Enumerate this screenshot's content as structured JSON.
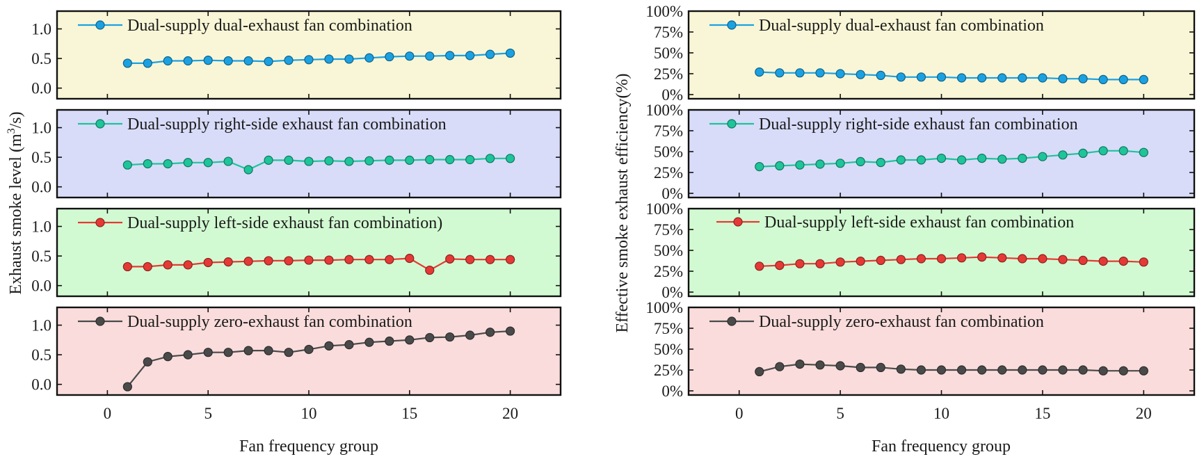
{
  "chart_data": [
    {
      "type": "line",
      "ylabel_prefix": "Exhaust smoke level (m",
      "ylabel_superscript": "3",
      "ylabel_suffix": "/s)",
      "xlabel": "Fan frequency group",
      "x_ticks": [
        "0",
        "5",
        "10",
        "15",
        "20"
      ],
      "x_tick_values": [
        0,
        5,
        10,
        15,
        20
      ],
      "xlim": [
        -2.5,
        22.5
      ],
      "y_ticks": [
        "0.0",
        "0.5",
        "1.0"
      ],
      "y_tick_values": [
        0,
        0.5,
        1.0
      ],
      "panels": [
        {
          "name": "Dual-supply dual-exhaust fan combination",
          "color": "#1ba1e2",
          "bg_color": "#f8f6d6",
          "ylim": [
            -0.18,
            1.3
          ],
          "x": [
            1,
            2,
            3,
            4,
            5,
            6,
            7,
            8,
            9,
            10,
            11,
            12,
            13,
            14,
            15,
            16,
            17,
            18,
            19,
            20
          ],
          "values": [
            0.42,
            0.42,
            0.46,
            0.46,
            0.47,
            0.46,
            0.46,
            0.45,
            0.47,
            0.48,
            0.49,
            0.49,
            0.51,
            0.53,
            0.54,
            0.54,
            0.55,
            0.55,
            0.57,
            0.59
          ]
        },
        {
          "name": "Dual-supply right-side exhaust fan combination",
          "color": "#1ec49a",
          "bg_color": "#d8dcf9",
          "ylim": [
            -0.18,
            1.3
          ],
          "x": [
            1,
            2,
            3,
            4,
            5,
            6,
            7,
            8,
            9,
            10,
            11,
            12,
            13,
            14,
            15,
            16,
            17,
            18,
            19,
            20
          ],
          "values": [
            0.37,
            0.39,
            0.39,
            0.41,
            0.41,
            0.43,
            0.29,
            0.45,
            0.45,
            0.43,
            0.44,
            0.43,
            0.44,
            0.45,
            0.45,
            0.46,
            0.46,
            0.46,
            0.48,
            0.48
          ]
        },
        {
          "name": "Dual-supply left-side exhaust fan combination)",
          "color": "#e53935",
          "bg_color": "#d2fad2",
          "ylim": [
            -0.18,
            1.3
          ],
          "x": [
            1,
            2,
            3,
            4,
            5,
            6,
            7,
            8,
            9,
            10,
            11,
            12,
            13,
            14,
            15,
            16,
            17,
            18,
            19,
            20
          ],
          "values": [
            0.32,
            0.32,
            0.35,
            0.35,
            0.39,
            0.4,
            0.41,
            0.42,
            0.42,
            0.43,
            0.43,
            0.44,
            0.44,
            0.44,
            0.46,
            0.26,
            0.45,
            0.44,
            0.44,
            0.44
          ]
        },
        {
          "name": "Dual-supply zero-exhaust fan combination",
          "color": "#4a4a4a",
          "bg_color": "#f9dcdb",
          "ylim": [
            -0.18,
            1.3
          ],
          "x": [
            1,
            2,
            3,
            4,
            5,
            6,
            7,
            8,
            9,
            10,
            11,
            12,
            13,
            14,
            15,
            16,
            17,
            18,
            19,
            20
          ],
          "values": [
            -0.04,
            0.38,
            0.47,
            0.5,
            0.54,
            0.54,
            0.57,
            0.57,
            0.54,
            0.59,
            0.65,
            0.67,
            0.71,
            0.73,
            0.75,
            0.79,
            0.8,
            0.83,
            0.88,
            0.9
          ]
        }
      ]
    },
    {
      "type": "line",
      "ylabel": "Effective smoke exhaust efficiency(%)",
      "xlabel": "Fan frequency group",
      "x_ticks": [
        "0",
        "5",
        "10",
        "15",
        "20"
      ],
      "x_tick_values": [
        0,
        5,
        10,
        15,
        20
      ],
      "xlim": [
        -2.5,
        22.5
      ],
      "y_ticks": [
        "0%",
        "25%",
        "50%",
        "75%",
        "100%"
      ],
      "y_tick_values": [
        0,
        25,
        50,
        75,
        100
      ],
      "panels": [
        {
          "name": "Dual-supply dual-exhaust fan combination",
          "color": "#1ba1e2",
          "bg_color": "#f8f6d6",
          "ylim": [
            -5,
            100
          ],
          "x": [
            1,
            2,
            3,
            4,
            5,
            6,
            7,
            8,
            9,
            10,
            11,
            12,
            13,
            14,
            15,
            16,
            17,
            18,
            19,
            20
          ],
          "values": [
            27,
            26,
            26,
            26,
            25,
            24,
            23,
            21,
            21,
            21,
            20,
            20,
            20,
            20,
            20,
            19,
            19,
            18,
            18,
            18
          ]
        },
        {
          "name": "Dual-supply right-side exhaust fan combination",
          "color": "#1ec49a",
          "bg_color": "#d8dcf9",
          "ylim": [
            -5,
            100
          ],
          "x": [
            1,
            2,
            3,
            4,
            5,
            6,
            7,
            8,
            9,
            10,
            11,
            12,
            13,
            14,
            15,
            16,
            17,
            18,
            19,
            20
          ],
          "values": [
            32,
            33,
            34,
            35,
            36,
            38,
            37,
            40,
            40,
            42,
            40,
            42,
            41,
            42,
            44,
            46,
            48,
            51,
            51,
            49
          ]
        },
        {
          "name": "Dual-supply left-side exhaust fan combination",
          "color": "#e53935",
          "bg_color": "#d2fad2",
          "ylim": [
            -5,
            100
          ],
          "x": [
            1,
            2,
            3,
            4,
            5,
            6,
            7,
            8,
            9,
            10,
            11,
            12,
            13,
            14,
            15,
            16,
            17,
            18,
            19,
            20
          ],
          "values": [
            31,
            32,
            34,
            34,
            36,
            37,
            38,
            39,
            40,
            40,
            41,
            42,
            41,
            40,
            40,
            39,
            38,
            37,
            37,
            36
          ]
        },
        {
          "name": "Dual-supply zero-exhaust fan combination",
          "color": "#4a4a4a",
          "bg_color": "#f9dcdb",
          "ylim": [
            -5,
            100
          ],
          "x": [
            1,
            2,
            3,
            4,
            5,
            6,
            7,
            8,
            9,
            10,
            11,
            12,
            13,
            14,
            15,
            16,
            17,
            18,
            19,
            20
          ],
          "values": [
            23,
            29,
            32,
            31,
            30,
            28,
            28,
            26,
            25,
            25,
            25,
            25,
            25,
            25,
            25,
            25,
            25,
            24,
            24,
            24
          ]
        }
      ]
    }
  ]
}
